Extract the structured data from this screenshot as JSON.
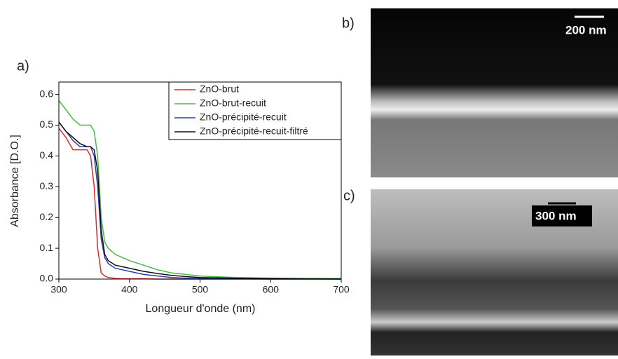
{
  "chart_data": {
    "type": "line",
    "panel_label": "a)",
    "x_label": "Longueur d'onde (nm)",
    "y_label": "Absorbance [D.O.]",
    "x": [
      300,
      310,
      320,
      330,
      340,
      345,
      350,
      355,
      360,
      365,
      370,
      380,
      390,
      400,
      420,
      440,
      460,
      480,
      500,
      550,
      600,
      650,
      700
    ],
    "series": [
      {
        "name": "ZnO-brut",
        "color": "#e8262a",
        "values": [
          0.49,
          0.46,
          0.42,
          0.42,
          0.42,
          0.4,
          0.3,
          0.1,
          0.02,
          0.01,
          0.005,
          0.002,
          0.001,
          0.001,
          0.001,
          0,
          0,
          0,
          0,
          0,
          0,
          0,
          0
        ]
      },
      {
        "name": "ZnO-brut-recuit",
        "color": "#4cb848",
        "values": [
          0.58,
          0.55,
          0.52,
          0.5,
          0.5,
          0.5,
          0.48,
          0.4,
          0.2,
          0.12,
          0.1,
          0.08,
          0.07,
          0.06,
          0.045,
          0.03,
          0.02,
          0.015,
          0.01,
          0.005,
          0.003,
          0.002,
          0.002
        ]
      },
      {
        "name": "ZnO-précipité-recuit",
        "color": "#2b3fae",
        "values": [
          0.51,
          0.48,
          0.45,
          0.43,
          0.43,
          0.43,
          0.4,
          0.3,
          0.13,
          0.07,
          0.05,
          0.035,
          0.03,
          0.025,
          0.015,
          0.01,
          0.005,
          0.003,
          0.002,
          0.001,
          0,
          0,
          0
        ]
      },
      {
        "name": "ZnO-précipité-recuit-filtré",
        "color": "#111111",
        "values": [
          0.51,
          0.48,
          0.46,
          0.44,
          0.43,
          0.43,
          0.42,
          0.35,
          0.16,
          0.08,
          0.06,
          0.045,
          0.04,
          0.035,
          0.025,
          0.018,
          0.012,
          0.008,
          0.005,
          0.003,
          0.002,
          0.001,
          0
        ]
      }
    ],
    "xlim": [
      300,
      700
    ],
    "xticks": [
      300,
      400,
      500,
      600,
      700
    ],
    "ylim": [
      0,
      0.64
    ],
    "yticks": [
      {
        "value": 0,
        "label": "0.0"
      },
      0.1,
      0.2,
      0.3,
      0.4,
      0.5,
      0.6
    ],
    "legend": "top-right",
    "grid": false
  },
  "images": [
    {
      "label": "b)",
      "scale_bar": "200 nm"
    },
    {
      "label": "c)",
      "scale_bar": "300 nm"
    }
  ]
}
